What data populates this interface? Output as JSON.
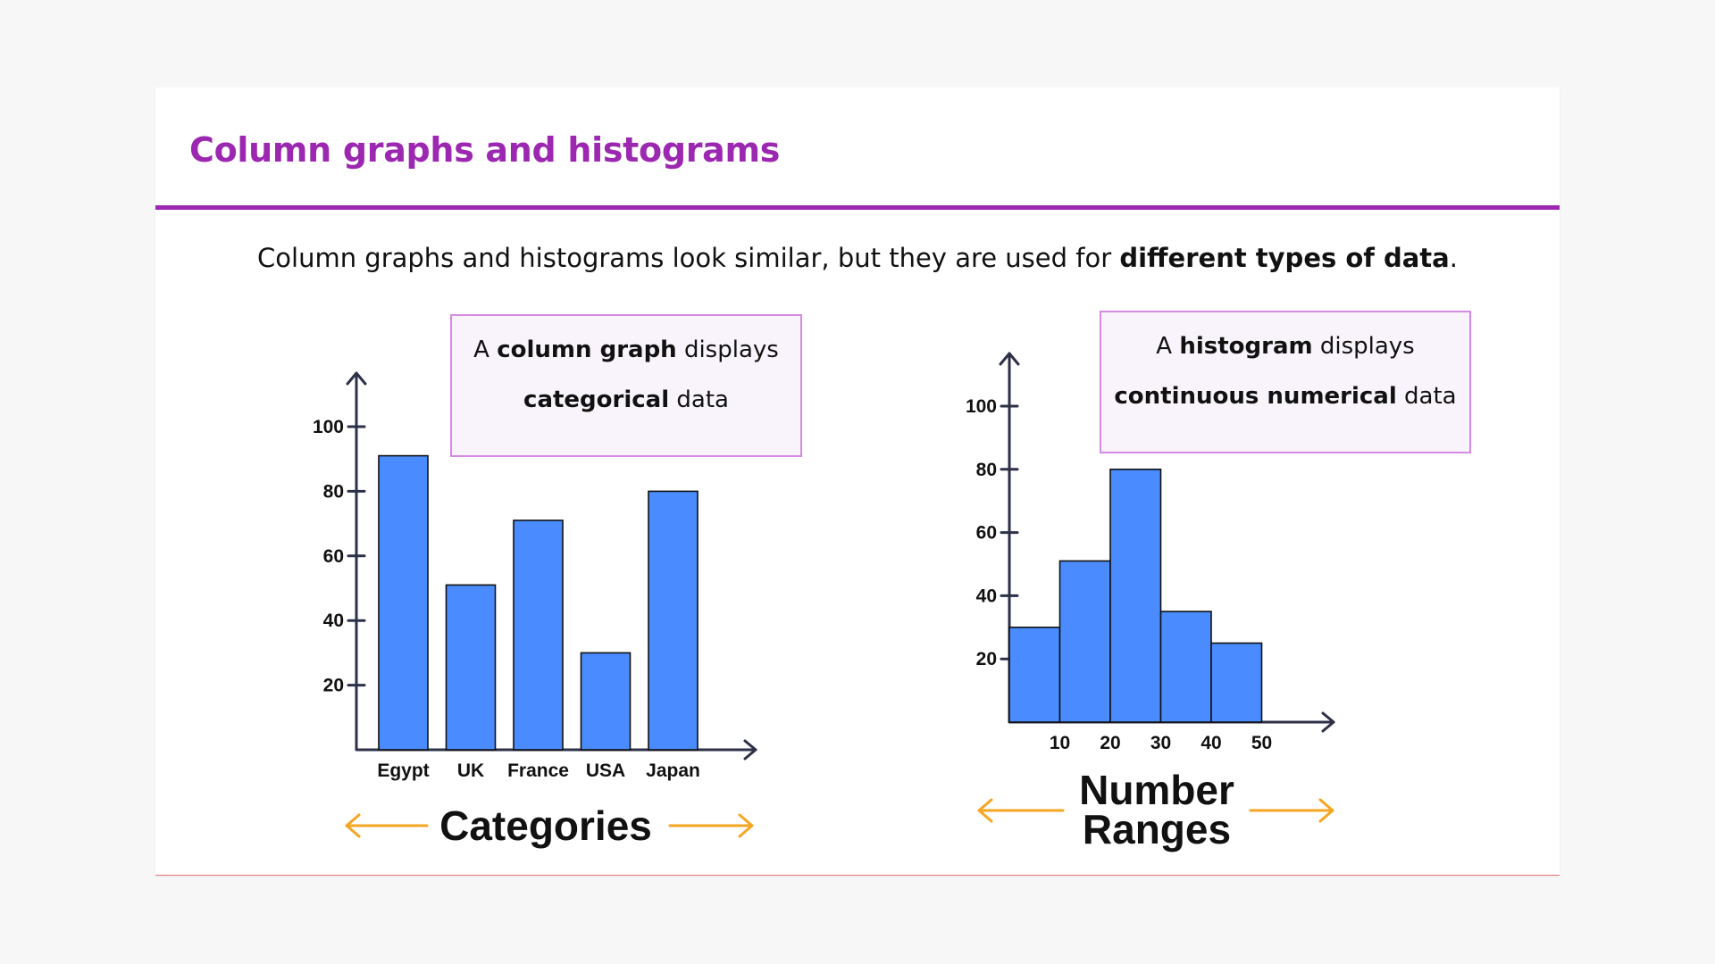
{
  "page": {
    "title": "Column graphs and histograms",
    "intro_plain": "Column graphs and histograms look similar, but they are used for ",
    "intro_bold": "different types of data",
    "intro_end": "."
  },
  "colors": {
    "accent": "#9c27b0",
    "bar_fill": "#4a8cff",
    "bar_stroke": "#111111",
    "axis": "#2c3148",
    "arrow": "#f5a623",
    "callout_border": "#d58be3",
    "callout_bg": "#f9f3fb"
  },
  "callouts": {
    "left": {
      "pre": "A ",
      "bold1": "column graph",
      "mid": " displays",
      "bold2": "categorical",
      "post": " data"
    },
    "right": {
      "pre": "A ",
      "bold1": "histogram",
      "mid": " displays",
      "bold2": "continuous numerical",
      "post": " data"
    }
  },
  "chart_data": [
    {
      "type": "bar",
      "categories": [
        "Egypt",
        "UK",
        "France",
        "USA",
        "Japan"
      ],
      "values": [
        91,
        51,
        71,
        30,
        80
      ],
      "yticks": [
        20,
        40,
        60,
        80,
        100
      ],
      "ylim": [
        0,
        112
      ],
      "xlabel": "Categories",
      "grid": false
    },
    {
      "type": "bar",
      "subtype": "histogram",
      "bins": [
        [
          0,
          10
        ],
        [
          10,
          20
        ],
        [
          20,
          30
        ],
        [
          30,
          40
        ],
        [
          40,
          50
        ]
      ],
      "values": [
        30,
        51,
        80,
        35,
        25
      ],
      "xticks": [
        10,
        20,
        30,
        40,
        50
      ],
      "yticks": [
        20,
        40,
        60,
        80,
        100
      ],
      "ylim": [
        0,
        112
      ],
      "xlabel_lines": [
        "Number",
        "Ranges"
      ],
      "grid": false
    }
  ]
}
